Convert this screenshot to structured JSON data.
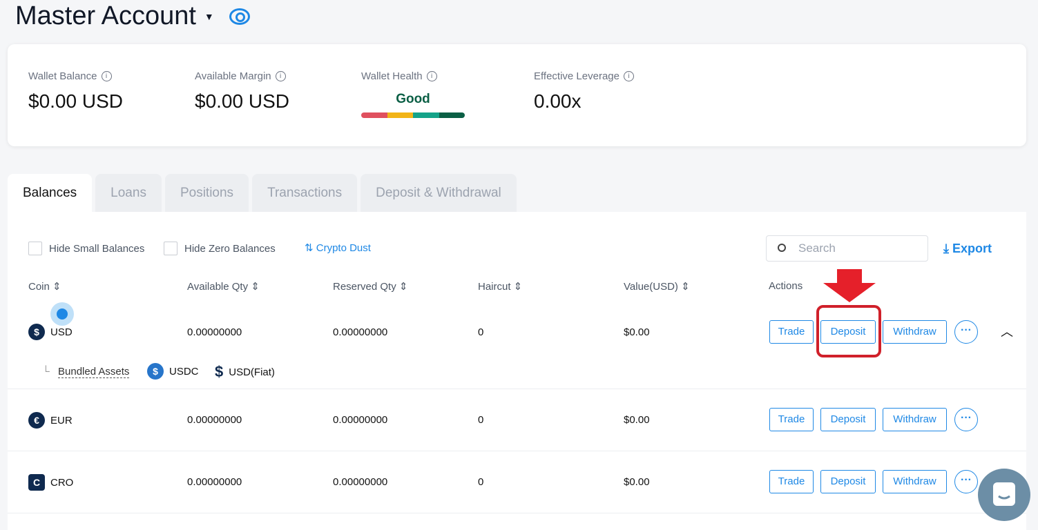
{
  "header": {
    "title": "Master Account"
  },
  "summary": {
    "wallet_balance": {
      "label": "Wallet Balance",
      "value": "$0.00 USD"
    },
    "available_margin": {
      "label": "Available Margin",
      "value": "$0.00 USD"
    },
    "wallet_health": {
      "label": "Wallet Health",
      "value": "Good",
      "colors": [
        "#e0505e",
        "#f2b417",
        "#14a389",
        "#0b5f45"
      ]
    },
    "effective_leverage": {
      "label": "Effective Leverage",
      "value": "0.00x"
    }
  },
  "tabs": [
    "Balances",
    "Loans",
    "Positions",
    "Transactions",
    "Deposit & Withdrawal"
  ],
  "filters": {
    "hide_small": "Hide Small Balances",
    "hide_zero": "Hide Zero Balances",
    "crypto_dust": "Crypto Dust",
    "search_placeholder": "Search",
    "export": "Export"
  },
  "columns": [
    "Coin",
    "Available Qty",
    "Reserved Qty",
    "Haircut",
    "Value(USD)",
    "Actions"
  ],
  "actions": {
    "trade": "Trade",
    "deposit": "Deposit",
    "withdraw": "Withdraw"
  },
  "rows": [
    {
      "coin": "USD",
      "symbol": "$",
      "available": "0.00000000",
      "reserved": "0.00000000",
      "haircut": "0",
      "value": "$0.00"
    },
    {
      "coin": "EUR",
      "symbol": "€",
      "available": "0.00000000",
      "reserved": "0.00000000",
      "haircut": "0",
      "value": "$0.00"
    },
    {
      "coin": "CRO",
      "symbol": "C",
      "available": "0.00000000",
      "reserved": "0.00000000",
      "haircut": "0",
      "value": "$0.00"
    }
  ],
  "bundled": {
    "label": "Bundled Assets",
    "items": [
      "USDC",
      "USD(Fiat)"
    ]
  },
  "accent": "#1e88e5"
}
